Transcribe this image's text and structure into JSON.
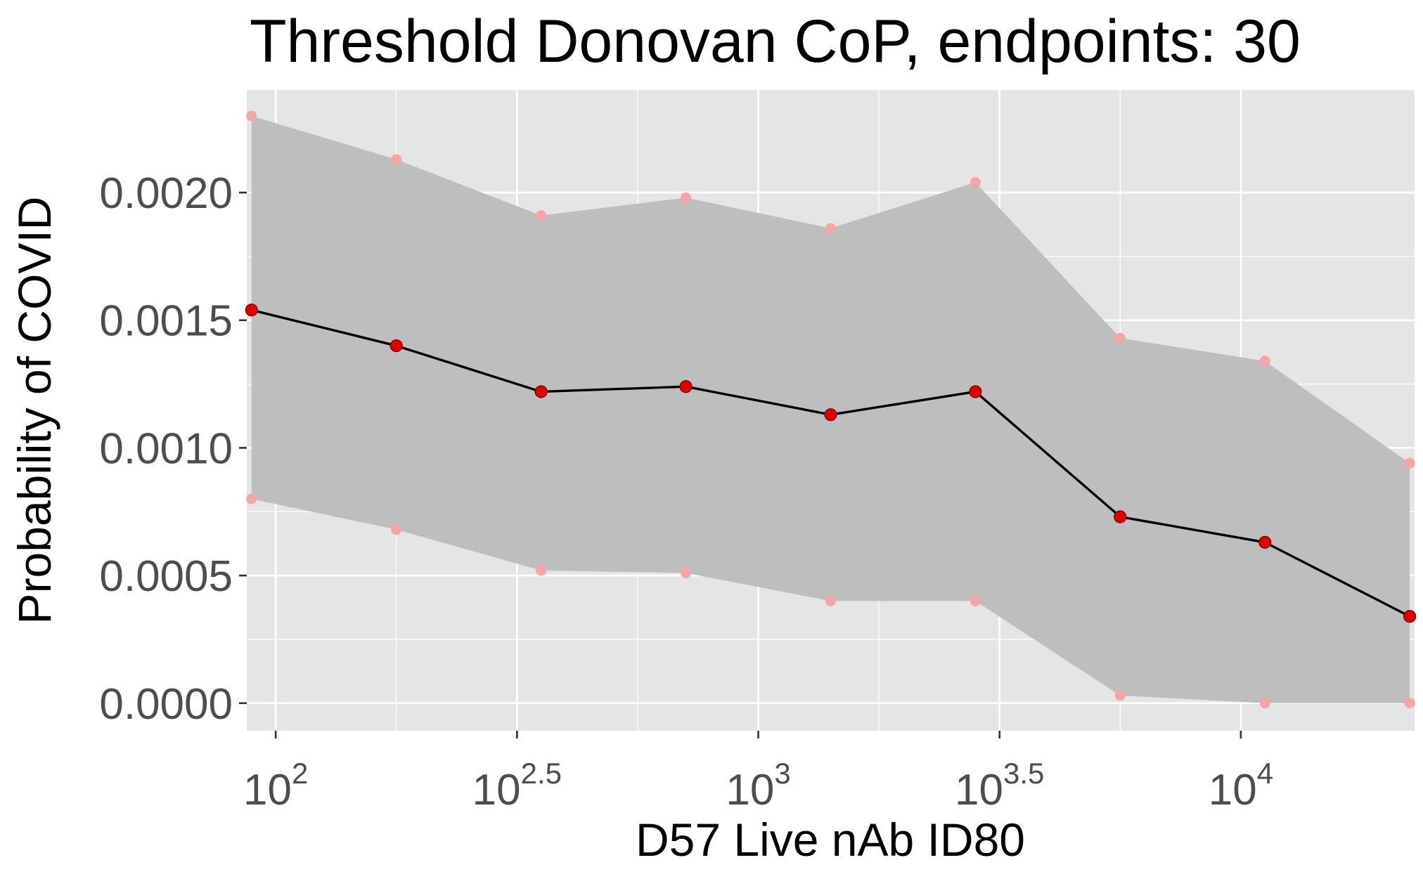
{
  "chart_data": {
    "type": "line",
    "title": "Threshold Donovan CoP, endpoints: 30",
    "xlabel": "D57 Live nAb ID80",
    "ylabel": "Probability of COVID",
    "x_scale": "log10",
    "xlim": [
      87.1,
      22909
    ],
    "ylim": [
      -0.000108,
      0.002402
    ],
    "grid": true,
    "legend": "none",
    "x_ticks": [
      {
        "value": 100,
        "base": "10",
        "exp": "2"
      },
      {
        "value": 316.23,
        "base": "10",
        "exp": "2.5"
      },
      {
        "value": 1000,
        "base": "10",
        "exp": "3"
      },
      {
        "value": 3162.3,
        "base": "10",
        "exp": "3.5"
      },
      {
        "value": 10000,
        "base": "10",
        "exp": "4"
      }
    ],
    "y_ticks": [
      {
        "value": 0.0,
        "label": "0.0000"
      },
      {
        "value": 0.0005,
        "label": "0.0005"
      },
      {
        "value": 0.001,
        "label": "0.0010"
      },
      {
        "value": 0.0015,
        "label": "0.0015"
      },
      {
        "value": 0.002,
        "label": "0.0020"
      }
    ],
    "x": [
      89.1,
      177.8,
      354.8,
      707.9,
      1412.5,
      2818.4,
      5623.4,
      11220.2,
      22387.2
    ],
    "series": [
      {
        "role": "estimate",
        "values": [
          0.00154,
          0.0014,
          0.00122,
          0.00124,
          0.00113,
          0.00122,
          0.00073,
          0.00063,
          0.00034
        ],
        "color": "#e00000"
      },
      {
        "role": "upper",
        "values": [
          0.0023,
          0.00213,
          0.00191,
          0.00198,
          0.00186,
          0.00204,
          0.00143,
          0.00134,
          0.00094
        ],
        "color": "#f4a6a6"
      },
      {
        "role": "lower",
        "values": [
          0.0008,
          0.00068,
          0.00052,
          0.00051,
          0.0004,
          0.0004,
          3e-05,
          0.0,
          0.0
        ],
        "color": "#f4a6a6"
      }
    ],
    "colors": {
      "panel": "#e5e5e5",
      "grid": "#ffffff",
      "ribbon": "#bebebe",
      "line": "#000000",
      "point": "#e00000",
      "bound_point": "#f4a6a6"
    }
  }
}
